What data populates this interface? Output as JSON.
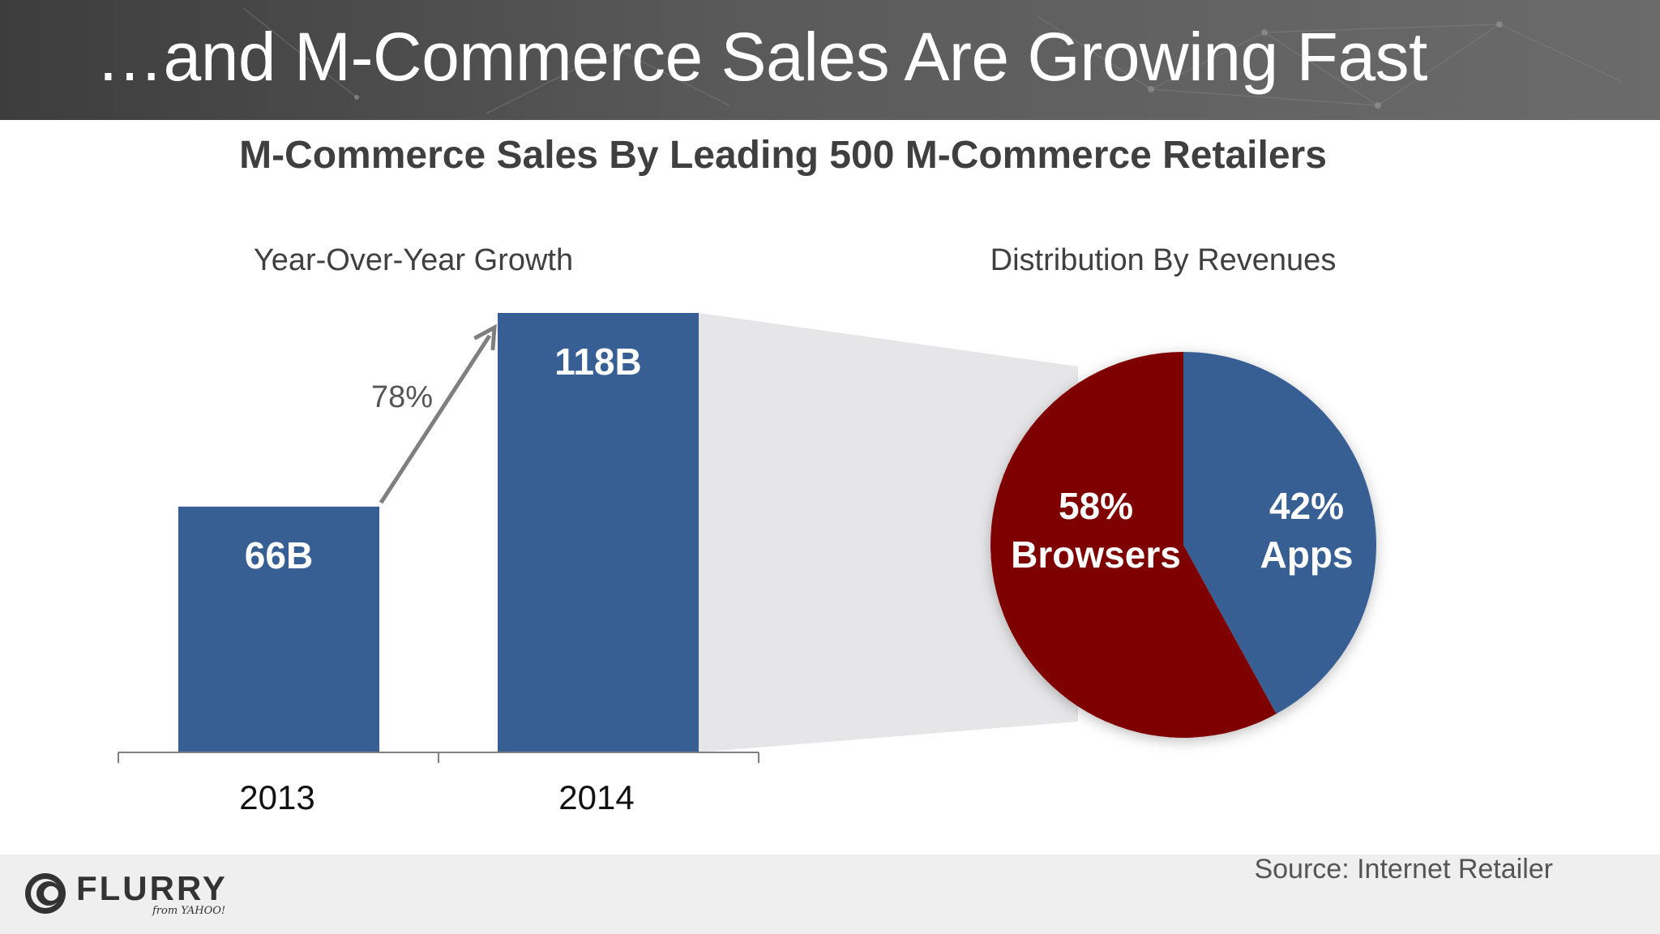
{
  "slide": {
    "title": "…and M-Commerce Sales Are Growing Fast",
    "chart_title": "M-Commerce Sales By Leading 500 M-Commerce Retailers",
    "bar_subtitle": "Year-Over-Year Growth",
    "pie_subtitle": "Distribution By Revenues",
    "source": "Source: Internet Retailer",
    "logo_text": "FLURRY",
    "logo_sub": "from YAHOO!"
  },
  "colors": {
    "bar": "#375f93",
    "apps": "#375f93",
    "browsers": "#7e0000",
    "arrow": "#7f7f7f",
    "funnel": "#e6e6e9"
  },
  "chart_data": [
    {
      "type": "bar",
      "categories": [
        "2013",
        "2014"
      ],
      "values": [
        66,
        118
      ],
      "data_labels": [
        "66B",
        "118B"
      ],
      "ylim": [
        0,
        118
      ],
      "growth_label": "78%",
      "title": "Year-Over-Year Growth",
      "xlabel": "",
      "ylabel": "",
      "grid": false
    },
    {
      "type": "pie",
      "title": "Distribution By Revenues",
      "slices": [
        {
          "name": "Apps",
          "value": 42,
          "label_pct": "42%",
          "label_name": "Apps"
        },
        {
          "name": "Browsers",
          "value": 58,
          "label_pct": "58%",
          "label_name": "Browsers"
        }
      ]
    }
  ]
}
